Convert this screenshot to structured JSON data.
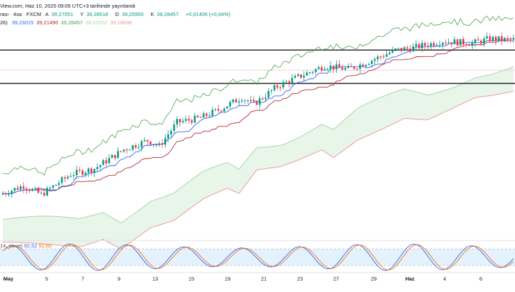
{
  "header": {
    "line1": "View.com, Haz 10, 2025 09:05 UTC+3 tarihinde yayınlandı",
    "symbol_prefix": "rası · 4sa · FXCM",
    "ohlc": {
      "o_label": "A",
      "o": "39,27051",
      "h_label": "Y",
      "h": "39,28518",
      "l_label": "D",
      "l": "39,25955",
      "c_label": "K",
      "c": "39,28457",
      "change": "+0,01406 (+0,04%)"
    },
    "ichimoku_prefix": "26)",
    "ichimoku_values": [
      {
        "value": "39,23015",
        "color": "#2962ff"
      },
      {
        "value": "39,21490",
        "color": "#b22833"
      },
      {
        "value": "39,28457",
        "color": "#43a047"
      },
      {
        "value": "39,22252",
        "color": "#a5d6a7"
      },
      {
        "value": "39,18696",
        "color": "#ef9a9a"
      }
    ]
  },
  "stoch_legend": {
    "prefix": "14, close)",
    "k": "92,52",
    "d": "92,86",
    "k_color": "#2962ff",
    "d_color": "#ff6d00"
  },
  "colors": {
    "up": "#089981",
    "down": "#f23645",
    "tenkan": "#2962ff",
    "kijun": "#b22833",
    "chikou": "#43a047",
    "cloud_fill": "#e8f5e9",
    "span_a": "#a5d6a7",
    "span_b": "#ef9a9a",
    "osc_band": "#e3f2fd",
    "osc_k": "#2962ff",
    "osc_d": "#ff6d00",
    "level_line": "#000000"
  },
  "chart_data": {
    "type": "candlestick",
    "interval": "4sa",
    "indicators": [
      "Ichimoku Cloud",
      "Stochastic RSI"
    ],
    "x_ticks": [
      "May",
      "5",
      "7",
      "9",
      "13",
      "15",
      "19",
      "21",
      "23",
      "27",
      "29",
      "Haz",
      "4",
      "6"
    ],
    "horizontal_levels": [
      "resistance",
      "support"
    ],
    "price_path": [
      {
        "i": 0,
        "v": 100
      },
      {
        "i": 8,
        "v": 108
      },
      {
        "i": 14,
        "v": 100
      },
      {
        "i": 24,
        "v": 118
      },
      {
        "i": 32,
        "v": 123
      },
      {
        "i": 42,
        "v": 140
      },
      {
        "i": 50,
        "v": 148
      },
      {
        "i": 54,
        "v": 143
      },
      {
        "i": 60,
        "v": 164
      },
      {
        "i": 68,
        "v": 168
      },
      {
        "i": 74,
        "v": 175
      },
      {
        "i": 82,
        "v": 186
      },
      {
        "i": 86,
        "v": 180
      },
      {
        "i": 94,
        "v": 196
      },
      {
        "i": 100,
        "v": 203
      },
      {
        "i": 110,
        "v": 214
      },
      {
        "i": 118,
        "v": 211
      },
      {
        "i": 126,
        "v": 219
      },
      {
        "i": 134,
        "v": 228
      },
      {
        "i": 140,
        "v": 230
      },
      {
        "i": 150,
        "v": 236
      },
      {
        "i": 160,
        "v": 234
      },
      {
        "i": 166,
        "v": 238
      },
      {
        "i": 172,
        "v": 237
      }
    ],
    "stoch_range": [
      0,
      100
    ],
    "stoch_levels": [
      80,
      20
    ]
  }
}
